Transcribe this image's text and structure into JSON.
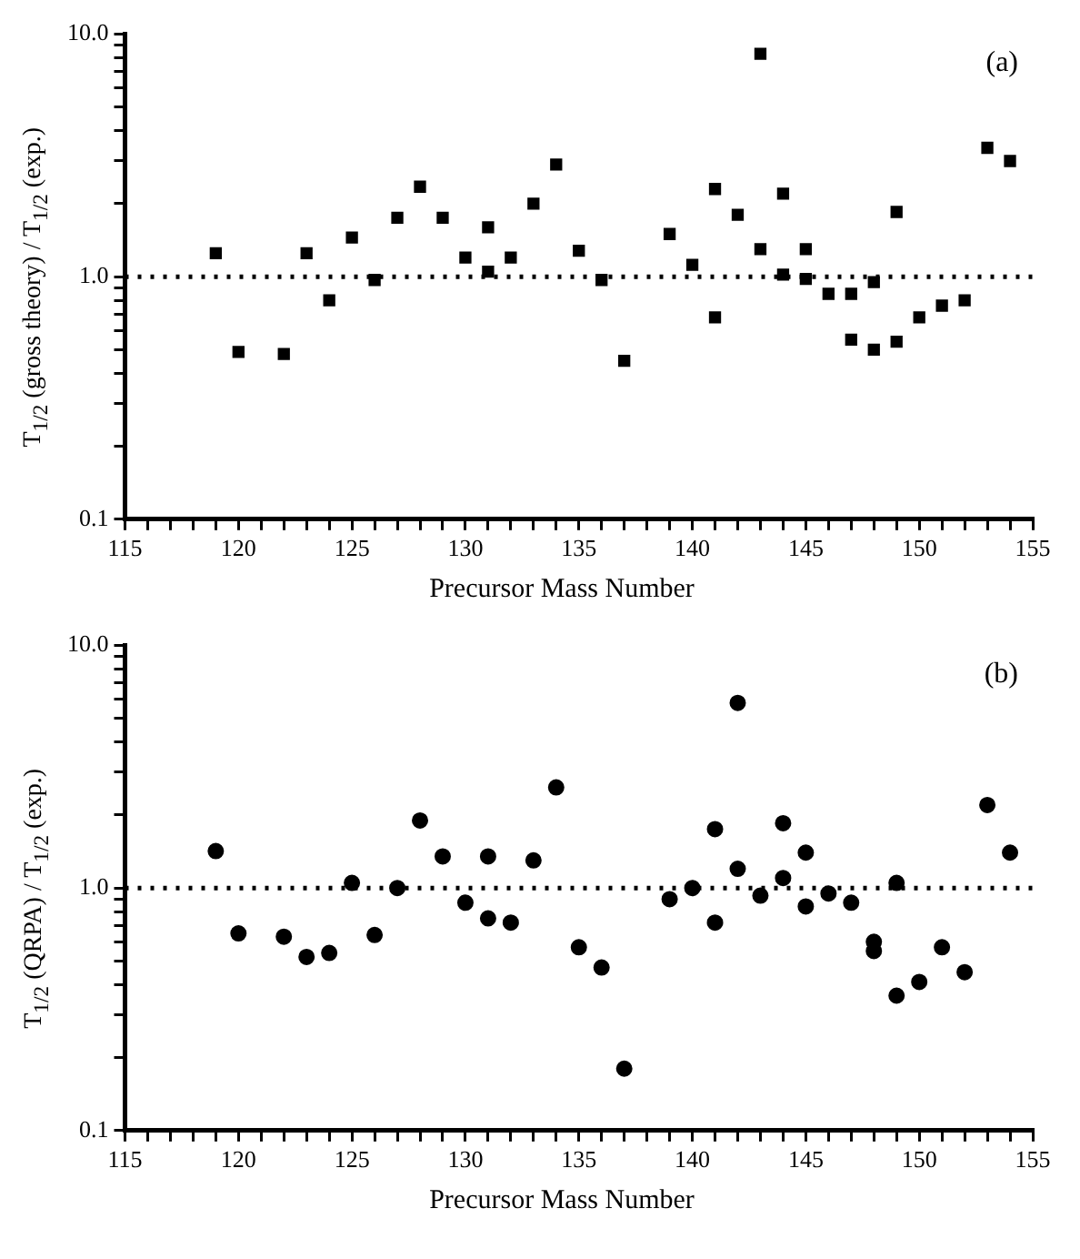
{
  "chart_data": [
    {
      "type": "scatter",
      "xlabel": "Precursor Mass Number",
      "ylabel": "T$_{1/2}$ (gross theory) / T$_{1/2}$ (exp.)",
      "annotations": [
        "(a)"
      ],
      "marker": "square",
      "color": "#000000",
      "log": "y",
      "grid": false,
      "x": [
        119,
        120,
        122,
        123,
        124,
        125,
        126,
        127,
        128,
        129,
        130,
        131,
        131,
        132,
        133,
        134,
        135,
        136,
        137,
        139,
        140,
        141,
        141,
        142,
        143,
        143,
        144,
        144,
        145,
        145,
        146,
        147,
        147,
        148,
        148,
        149,
        149,
        150,
        151,
        152,
        153,
        154
      ],
      "values": [
        1.25,
        0.49,
        0.48,
        1.25,
        0.8,
        1.45,
        0.97,
        1.75,
        2.35,
        1.75,
        1.2,
        1.6,
        1.05,
        1.2,
        2.0,
        2.9,
        1.28,
        0.97,
        0.45,
        1.5,
        1.12,
        2.3,
        0.68,
        1.8,
        8.3,
        1.3,
        2.2,
        1.02,
        1.3,
        0.98,
        0.85,
        0.85,
        0.55,
        0.5,
        0.95,
        0.54,
        1.85,
        0.68,
        0.76,
        0.8,
        3.4,
        3.0
      ],
      "xlim": [
        115,
        155
      ],
      "xticks": [
        115,
        120,
        125,
        130,
        135,
        140,
        145,
        150,
        155,
        {
          "value": 116,
          "label": null
        },
        {
          "value": 117,
          "label": null
        },
        {
          "value": 118,
          "label": null
        },
        {
          "value": 119,
          "label": null
        },
        {
          "value": 121,
          "label": null
        },
        {
          "value": 122,
          "label": null
        },
        {
          "value": 123,
          "label": null
        },
        {
          "value": 124,
          "label": null
        },
        {
          "value": 126,
          "label": null
        },
        {
          "value": 127,
          "label": null
        },
        {
          "value": 128,
          "label": null
        },
        {
          "value": 129,
          "label": null
        },
        {
          "value": 131,
          "label": null
        },
        {
          "value": 132,
          "label": null
        },
        {
          "value": 133,
          "label": null
        },
        {
          "value": 134,
          "label": null
        },
        {
          "value": 136,
          "label": null
        },
        {
          "value": 137,
          "label": null
        },
        {
          "value": 138,
          "label": null
        },
        {
          "value": 139,
          "label": null
        },
        {
          "value": 141,
          "label": null
        },
        {
          "value": 142,
          "label": null
        },
        {
          "value": 143,
          "label": null
        },
        {
          "value": 144,
          "label": null
        },
        {
          "value": 146,
          "label": null
        },
        {
          "value": 147,
          "label": null
        },
        {
          "value": 148,
          "label": null
        },
        {
          "value": 149,
          "label": null
        },
        {
          "value": 151,
          "label": null
        },
        {
          "value": 152,
          "label": null
        },
        {
          "value": 153,
          "label": null
        },
        {
          "value": 154,
          "label": null
        }
      ],
      "ylim": [
        0.1,
        10
      ],
      "yticks": [
        0.1,
        {
          "value": 1,
          "label": "1.0"
        },
        {
          "value": 10,
          "label": "10.0"
        },
        {
          "value": 0.2,
          "label": null
        },
        {
          "value": 0.3,
          "label": null
        },
        {
          "value": 0.4,
          "label": null
        },
        {
          "value": 0.5,
          "label": null
        },
        {
          "value": 0.6,
          "label": null
        },
        {
          "value": 0.7,
          "label": null
        },
        {
          "value": 0.8,
          "label": null
        },
        {
          "value": 0.9,
          "label": null
        },
        {
          "value": 2,
          "label": null
        },
        {
          "value": 3,
          "label": null
        },
        {
          "value": 4,
          "label": null
        },
        {
          "value": 5,
          "label": null
        },
        {
          "value": 6,
          "label": null
        },
        {
          "value": 7,
          "label": null
        },
        {
          "value": 8,
          "label": null
        },
        {
          "value": 9,
          "label": null
        }
      ],
      "ref_lines": [
        {
          "axis": "y",
          "value": 1,
          "line_style": "dotted",
          "color": "#000000"
        }
      ]
    },
    {
      "type": "scatter",
      "xlabel": "Precursor Mass Number",
      "ylabel": "T$_{1/2}$ (QRPA) / T$_{1/2}$ (exp.)",
      "annotations": [
        "(b)"
      ],
      "marker": "circle",
      "color": "#000000",
      "log": "y",
      "grid": false,
      "x": [
        119,
        120,
        122,
        123,
        124,
        125,
        126,
        127,
        128,
        129,
        130,
        131,
        131,
        132,
        133,
        134,
        135,
        136,
        137,
        139,
        140,
        141,
        141,
        142,
        142,
        143,
        144,
        144,
        145,
        145,
        146,
        147,
        148,
        148,
        149,
        149,
        150,
        151,
        152,
        153,
        154
      ],
      "values": [
        1.42,
        0.65,
        0.63,
        0.52,
        0.54,
        1.05,
        0.64,
        1.0,
        1.9,
        1.35,
        0.87,
        1.35,
        0.75,
        0.72,
        1.3,
        2.6,
        0.57,
        0.47,
        0.18,
        0.9,
        1.0,
        1.75,
        0.72,
        5.8,
        1.2,
        0.93,
        1.85,
        1.1,
        1.4,
        0.84,
        0.95,
        0.87,
        0.6,
        0.55,
        0.36,
        1.05,
        0.41,
        0.57,
        0.45,
        2.2,
        1.4
      ],
      "xlim": [
        115,
        155
      ],
      "xticks": [
        115,
        120,
        125,
        130,
        135,
        140,
        145,
        150,
        155,
        {
          "value": 116,
          "label": null
        },
        {
          "value": 117,
          "label": null
        },
        {
          "value": 118,
          "label": null
        },
        {
          "value": 119,
          "label": null
        },
        {
          "value": 121,
          "label": null
        },
        {
          "value": 122,
          "label": null
        },
        {
          "value": 123,
          "label": null
        },
        {
          "value": 124,
          "label": null
        },
        {
          "value": 126,
          "label": null
        },
        {
          "value": 127,
          "label": null
        },
        {
          "value": 128,
          "label": null
        },
        {
          "value": 129,
          "label": null
        },
        {
          "value": 131,
          "label": null
        },
        {
          "value": 132,
          "label": null
        },
        {
          "value": 133,
          "label": null
        },
        {
          "value": 134,
          "label": null
        },
        {
          "value": 136,
          "label": null
        },
        {
          "value": 137,
          "label": null
        },
        {
          "value": 138,
          "label": null
        },
        {
          "value": 139,
          "label": null
        },
        {
          "value": 141,
          "label": null
        },
        {
          "value": 142,
          "label": null
        },
        {
          "value": 143,
          "label": null
        },
        {
          "value": 144,
          "label": null
        },
        {
          "value": 146,
          "label": null
        },
        {
          "value": 147,
          "label": null
        },
        {
          "value": 148,
          "label": null
        },
        {
          "value": 149,
          "label": null
        },
        {
          "value": 151,
          "label": null
        },
        {
          "value": 152,
          "label": null
        },
        {
          "value": 153,
          "label": null
        },
        {
          "value": 154,
          "label": null
        }
      ],
      "ylim": [
        0.1,
        10
      ],
      "yticks": [
        0.1,
        {
          "value": 1,
          "label": "1.0"
        },
        {
          "value": 10,
          "label": "10.0"
        },
        {
          "value": 0.2,
          "label": null
        },
        {
          "value": 0.3,
          "label": null
        },
        {
          "value": 0.4,
          "label": null
        },
        {
          "value": 0.5,
          "label": null
        },
        {
          "value": 0.6,
          "label": null
        },
        {
          "value": 0.7,
          "label": null
        },
        {
          "value": 0.8,
          "label": null
        },
        {
          "value": 0.9,
          "label": null
        },
        {
          "value": 2,
          "label": null
        },
        {
          "value": 3,
          "label": null
        },
        {
          "value": 4,
          "label": null
        },
        {
          "value": 5,
          "label": null
        },
        {
          "value": 6,
          "label": null
        },
        {
          "value": 7,
          "label": null
        },
        {
          "value": 8,
          "label": null
        },
        {
          "value": 9,
          "label": null
        }
      ],
      "ref_lines": [
        {
          "axis": "y",
          "value": 1,
          "line_style": "dotted",
          "color": "#000000"
        }
      ]
    }
  ]
}
